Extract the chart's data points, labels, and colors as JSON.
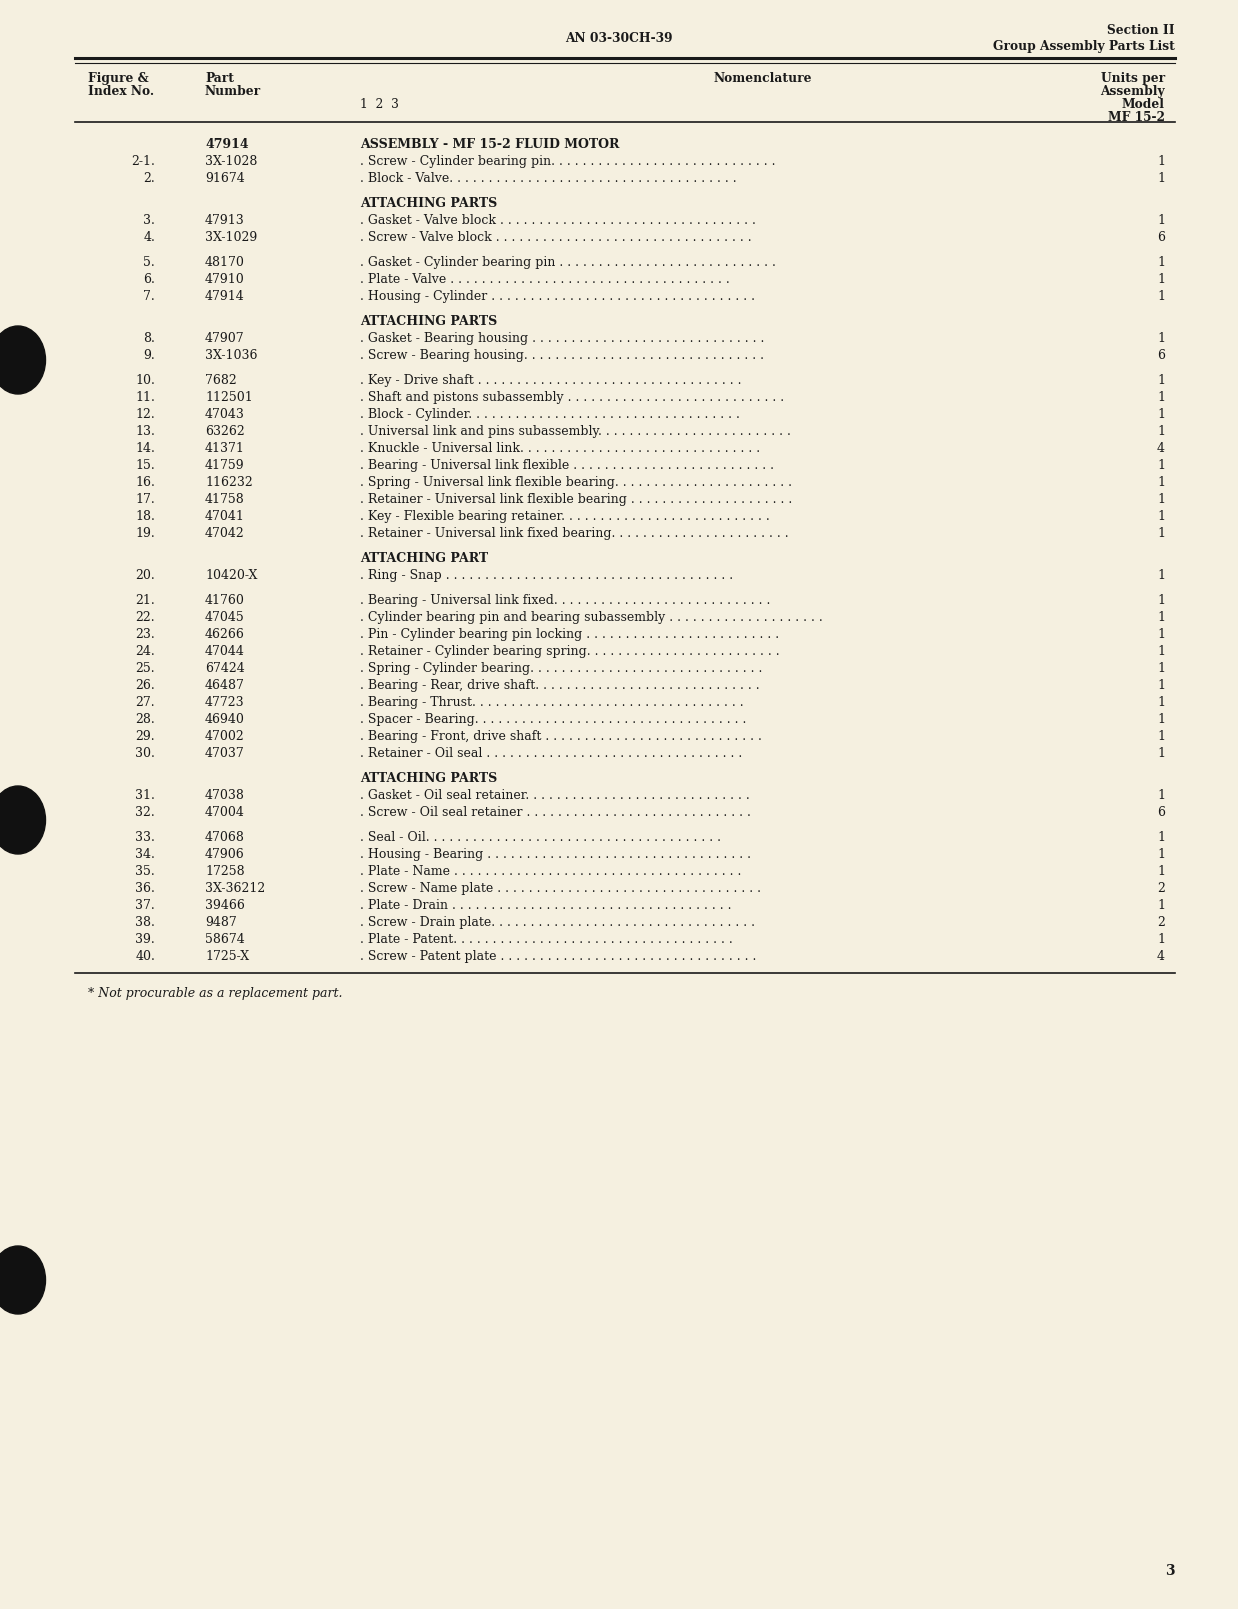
{
  "bg_color": "#f5f0e0",
  "header_center": "AN 03-30CH-39",
  "header_right_line1": "Section II",
  "header_right_line2": "Group Assembly Parts List",
  "rows": [
    {
      "fig": "",
      "part": "47914",
      "nom": "ASSEMBLY - MF 15-2 FLUID MOTOR",
      "units": "",
      "bold": true,
      "section_before": false,
      "extra_before": true
    },
    {
      "fig": "2-1.",
      "part": "3X-1028",
      "nom": ". Screw - Cylinder bearing pin. . . . . . . . . . . . . . . . . . . . . . . . . . . . .",
      "units": "1",
      "bold": false,
      "section_before": false,
      "extra_before": false
    },
    {
      "fig": "2.",
      "part": "91674",
      "nom": ". Block - Valve. . . . . . . . . . . . . . . . . . . . . . . . . . . . . . . . . . . . .",
      "units": "1",
      "bold": false,
      "section_before": false,
      "extra_before": false
    },
    {
      "fig": "",
      "part": "",
      "nom": "ATTACHING PARTS",
      "units": "",
      "bold": true,
      "section_before": true,
      "extra_before": false
    },
    {
      "fig": "3.",
      "part": "47913",
      "nom": ". Gasket - Valve block . . . . . . . . . . . . . . . . . . . . . . . . . . . . . . . . .",
      "units": "1",
      "bold": false,
      "section_before": false,
      "extra_before": false
    },
    {
      "fig": "4.",
      "part": "3X-1029",
      "nom": ". Screw - Valve block . . . . . . . . . . . . . . . . . . . . . . . . . . . . . . . . .",
      "units": "6",
      "bold": false,
      "section_before": false,
      "extra_before": false
    },
    {
      "fig": "5.",
      "part": "48170",
      "nom": ". Gasket - Cylinder bearing pin . . . . . . . . . . . . . . . . . . . . . . . . . . . .",
      "units": "1",
      "bold": false,
      "section_before": false,
      "extra_before": true
    },
    {
      "fig": "6.",
      "part": "47910",
      "nom": ". Plate - Valve . . . . . . . . . . . . . . . . . . . . . . . . . . . . . . . . . . . .",
      "units": "1",
      "bold": false,
      "section_before": false,
      "extra_before": false
    },
    {
      "fig": "7.",
      "part": "47914",
      "nom": ". Housing - Cylinder . . . . . . . . . . . . . . . . . . . . . . . . . . . . . . . . . .",
      "units": "1",
      "bold": false,
      "section_before": false,
      "extra_before": false
    },
    {
      "fig": "",
      "part": "",
      "nom": "ATTACHING PARTS",
      "units": "",
      "bold": true,
      "section_before": true,
      "extra_before": false
    },
    {
      "fig": "8.",
      "part": "47907",
      "nom": ". Gasket - Bearing housing . . . . . . . . . . . . . . . . . . . . . . . . . . . . . .",
      "units": "1",
      "bold": false,
      "section_before": false,
      "extra_before": false
    },
    {
      "fig": "9.",
      "part": "3X-1036",
      "nom": ". Screw - Bearing housing. . . . . . . . . . . . . . . . . . . . . . . . . . . . . . .",
      "units": "6",
      "bold": false,
      "section_before": false,
      "extra_before": false
    },
    {
      "fig": "10.",
      "part": "7682",
      "nom": ". Key - Drive shaft . . . . . . . . . . . . . . . . . . . . . . . . . . . . . . . . . .",
      "units": "1",
      "bold": false,
      "section_before": false,
      "extra_before": true
    },
    {
      "fig": "11.",
      "part": "112501",
      "nom": ". Shaft and pistons subassembly . . . . . . . . . . . . . . . . . . . . . . . . . . . .",
      "units": "1",
      "bold": false,
      "section_before": false,
      "extra_before": false
    },
    {
      "fig": "12.",
      "part": "47043",
      "nom": ". Block - Cylinder. . . . . . . . . . . . . . . . . . . . . . . . . . . . . . . . . . .",
      "units": "1",
      "bold": false,
      "section_before": false,
      "extra_before": false
    },
    {
      "fig": "13.",
      "part": "63262",
      "nom": ". Universal link and pins subassembly. . . . . . . . . . . . . . . . . . . . . . . . .",
      "units": "1",
      "bold": false,
      "section_before": false,
      "extra_before": false
    },
    {
      "fig": "14.",
      "part": "41371",
      "nom": ". Knuckle - Universal link. . . . . . . . . . . . . . . . . . . . . . . . . . . . . . .",
      "units": "4",
      "bold": false,
      "section_before": false,
      "extra_before": false
    },
    {
      "fig": "15.",
      "part": "41759",
      "nom": ". Bearing - Universal link flexible . . . . . . . . . . . . . . . . . . . . . . . . . .",
      "units": "1",
      "bold": false,
      "section_before": false,
      "extra_before": false
    },
    {
      "fig": "16.",
      "part": "116232",
      "nom": ". Spring - Universal link flexible bearing. . . . . . . . . . . . . . . . . . . . . . .",
      "units": "1",
      "bold": false,
      "section_before": false,
      "extra_before": false
    },
    {
      "fig": "17.",
      "part": "41758",
      "nom": ". Retainer - Universal link flexible bearing . . . . . . . . . . . . . . . . . . . . .",
      "units": "1",
      "bold": false,
      "section_before": false,
      "extra_before": false
    },
    {
      "fig": "18.",
      "part": "47041",
      "nom": ". Key - Flexible bearing retainer. . . . . . . . . . . . . . . . . . . . . . . . . . .",
      "units": "1",
      "bold": false,
      "section_before": false,
      "extra_before": false
    },
    {
      "fig": "19.",
      "part": "47042",
      "nom": ". Retainer - Universal link fixed bearing. . . . . . . . . . . . . . . . . . . . . . .",
      "units": "1",
      "bold": false,
      "section_before": false,
      "extra_before": false
    },
    {
      "fig": "",
      "part": "",
      "nom": "ATTACHING PART",
      "units": "",
      "bold": true,
      "section_before": true,
      "extra_before": false
    },
    {
      "fig": "20.",
      "part": "10420-X",
      "nom": ". Ring - Snap . . . . . . . . . . . . . . . . . . . . . . . . . . . . . . . . . . . . .",
      "units": "1",
      "bold": false,
      "section_before": false,
      "extra_before": false
    },
    {
      "fig": "21.",
      "part": "41760",
      "nom": ". Bearing - Universal link fixed. . . . . . . . . . . . . . . . . . . . . . . . . . . .",
      "units": "1",
      "bold": false,
      "section_before": false,
      "extra_before": true
    },
    {
      "fig": "22.",
      "part": "47045",
      "nom": ". Cylinder bearing pin and bearing subassembly . . . . . . . . . . . . . . . . . . . .",
      "units": "1",
      "bold": false,
      "section_before": false,
      "extra_before": false
    },
    {
      "fig": "23.",
      "part": "46266",
      "nom": ". Pin - Cylinder bearing pin locking . . . . . . . . . . . . . . . . . . . . . . . . .",
      "units": "1",
      "bold": false,
      "section_before": false,
      "extra_before": false
    },
    {
      "fig": "24.",
      "part": "47044",
      "nom": ". Retainer - Cylinder bearing spring. . . . . . . . . . . . . . . . . . . . . . . . .",
      "units": "1",
      "bold": false,
      "section_before": false,
      "extra_before": false
    },
    {
      "fig": "25.",
      "part": "67424",
      "nom": ". Spring - Cylinder bearing. . . . . . . . . . . . . . . . . . . . . . . . . . . . . .",
      "units": "1",
      "bold": false,
      "section_before": false,
      "extra_before": false
    },
    {
      "fig": "26.",
      "part": "46487",
      "nom": ". Bearing - Rear, drive shaft. . . . . . . . . . . . . . . . . . . . . . . . . . . . .",
      "units": "1",
      "bold": false,
      "section_before": false,
      "extra_before": false
    },
    {
      "fig": "27.",
      "part": "47723",
      "nom": ". Bearing - Thrust. . . . . . . . . . . . . . . . . . . . . . . . . . . . . . . . . . .",
      "units": "1",
      "bold": false,
      "section_before": false,
      "extra_before": false
    },
    {
      "fig": "28.",
      "part": "46940",
      "nom": ". Spacer - Bearing. . . . . . . . . . . . . . . . . . . . . . . . . . . . . . . . . . .",
      "units": "1",
      "bold": false,
      "section_before": false,
      "extra_before": false
    },
    {
      "fig": "29.",
      "part": "47002",
      "nom": ". Bearing - Front, drive shaft . . . . . . . . . . . . . . . . . . . . . . . . . . . .",
      "units": "1",
      "bold": false,
      "section_before": false,
      "extra_before": false
    },
    {
      "fig": "30.",
      "part": "47037",
      "nom": ". Retainer - Oil seal . . . . . . . . . . . . . . . . . . . . . . . . . . . . . . . . .",
      "units": "1",
      "bold": false,
      "section_before": false,
      "extra_before": false
    },
    {
      "fig": "",
      "part": "",
      "nom": "ATTACHING PARTS",
      "units": "",
      "bold": true,
      "section_before": true,
      "extra_before": false
    },
    {
      "fig": "31.",
      "part": "47038",
      "nom": ". Gasket - Oil seal retainer. . . . . . . . . . . . . . . . . . . . . . . . . . . . .",
      "units": "1",
      "bold": false,
      "section_before": false,
      "extra_before": false
    },
    {
      "fig": "32.",
      "part": "47004",
      "nom": ". Screw - Oil seal retainer . . . . . . . . . . . . . . . . . . . . . . . . . . . . .",
      "units": "6",
      "bold": false,
      "section_before": false,
      "extra_before": false
    },
    {
      "fig": "33.",
      "part": "47068",
      "nom": ". Seal - Oil. . . . . . . . . . . . . . . . . . . . . . . . . . . . . . . . . . . . . .",
      "units": "1",
      "bold": false,
      "section_before": false,
      "extra_before": true
    },
    {
      "fig": "34.",
      "part": "47906",
      "nom": ". Housing - Bearing . . . . . . . . . . . . . . . . . . . . . . . . . . . . . . . . . .",
      "units": "1",
      "bold": false,
      "section_before": false,
      "extra_before": false
    },
    {
      "fig": "35.",
      "part": "17258",
      "nom": ". Plate - Name . . . . . . . . . . . . . . . . . . . . . . . . . . . . . . . . . . . . .",
      "units": "1",
      "bold": false,
      "section_before": false,
      "extra_before": false
    },
    {
      "fig": "36.",
      "part": "3X-36212",
      "nom": ". Screw - Name plate . . . . . . . . . . . . . . . . . . . . . . . . . . . . . . . . . .",
      "units": "2",
      "bold": false,
      "section_before": false,
      "extra_before": false
    },
    {
      "fig": "37.",
      "part": "39466",
      "nom": ". Plate - Drain . . . . . . . . . . . . . . . . . . . . . . . . . . . . . . . . . . . .",
      "units": "1",
      "bold": false,
      "section_before": false,
      "extra_before": false
    },
    {
      "fig": "38.",
      "part": "9487",
      "nom": ". Screw - Drain plate. . . . . . . . . . . . . . . . . . . . . . . . . . . . . . . . . .",
      "units": "2",
      "bold": false,
      "section_before": false,
      "extra_before": false
    },
    {
      "fig": "39.",
      "part": "58674",
      "nom": ". Plate - Patent. . . . . . . . . . . . . . . . . . . . . . . . . . . . . . . . . . . .",
      "units": "1",
      "bold": false,
      "section_before": false,
      "extra_before": false
    },
    {
      "fig": "40.",
      "part": "1725-X",
      "nom": ". Screw - Patent plate . . . . . . . . . . . . . . . . . . . . . . . . . . . . . . . . .",
      "units": "4",
      "bold": false,
      "section_before": false,
      "extra_before": false
    }
  ],
  "footnote": "* Not procurable as a replacement part.",
  "page_num": "3",
  "text_color": "#1a1a1a"
}
